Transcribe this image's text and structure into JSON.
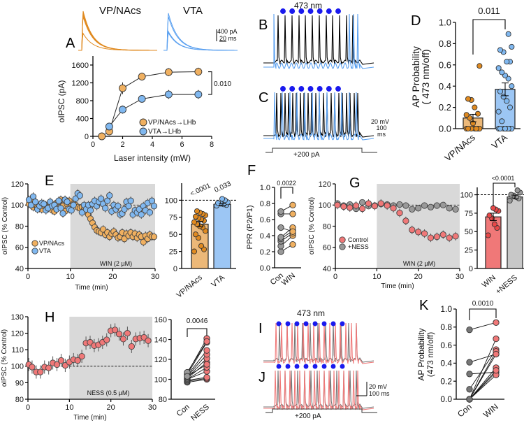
{
  "colors": {
    "vp": "#f0b060",
    "vp_stroke": "#e08a20",
    "vta": "#80b8f0",
    "vta_stroke": "#5aa0f0",
    "control": "#f07878",
    "ness": "#999999",
    "con_gray": "#666666",
    "laser": "#1a1aee",
    "shade": "#d9d9d9"
  },
  "panelA": {
    "letter": "A",
    "trace_title_vp": "VP/NAcs",
    "trace_title_vta": "VTA",
    "scale_y": "400 pA",
    "scale_x": "20 ms",
    "ylabel": "oIPSC (pA)",
    "xlabel": "Laser intensity (mW)",
    "legend_vp": "VP/NAcs→LHb",
    "legend_vta": "VTA→LHb",
    "p_value": "0.010"
  },
  "panelB": {
    "letter": "B",
    "laser_label": "473 nm"
  },
  "panelC": {
    "letter": "C",
    "scale_y": "20 mV",
    "scale_x1": "100",
    "scale_x2": "ms",
    "step_label": "+200 pA"
  },
  "panelD": {
    "letter": "D",
    "ylabel1": "AP Probability",
    "ylabel2": "( 473 nm/off)",
    "p_value": "0.011"
  },
  "panelE": {
    "letter": "E",
    "ylabel": "oIPSC (% Control)",
    "xlabel": "Time (min)",
    "legend_vp": "VP/NAcs",
    "legend_vta": "VTA",
    "drug": "WIN (2 µM)",
    "p_vp": "<.0001",
    "p_vta": "0.033"
  },
  "panelF": {
    "letter": "F",
    "ylabel": "PPR (P2/P1)",
    "p_value": "0.0022"
  },
  "panelG": {
    "letter": "G",
    "ylabel": "oIPSC (% Control)",
    "xlabel": "Time (min)",
    "legend_control": "Control",
    "legend_ness": "+NESS",
    "drug": "WIN (2 µM)",
    "p_value": "<0.0001"
  },
  "panelH": {
    "letter": "H",
    "ylabel": "oIPSC (% Control)",
    "xlabel": "Time (min)",
    "drug": "NESS (0.5 µM)",
    "p_value": "0.0046"
  },
  "panelI": {
    "letter": "I",
    "laser_label": "473 nm"
  },
  "panelJ": {
    "letter": "J",
    "scale_y": "20 mV",
    "scale_x": "100 ms",
    "step_label": "+200 pA"
  },
  "panelK": {
    "letter": "K",
    "ylabel1": "AP Probability",
    "ylabel2": "(473 nm/off)",
    "p_value": "0.0010"
  },
  "chart_data": [
    {
      "panel": "A",
      "type": "line",
      "xlim": [
        0,
        8
      ],
      "ylim": [
        0,
        1600
      ],
      "xticks": [
        0,
        2,
        4,
        6,
        8
      ],
      "yticks": [
        0,
        400,
        800,
        1200,
        1600
      ],
      "series": [
        {
          "name": "VP/NAcs→LHb",
          "x": [
            0.6,
            1.1,
            2.0,
            3.3,
            5.1,
            7.1
          ],
          "y": [
            0,
            110,
            1080,
            1340,
            1440,
            1450
          ],
          "sem": [
            20,
            40,
            130,
            90,
            90,
            90
          ]
        },
        {
          "name": "VTA→LHb",
          "x": [
            1.1,
            2.0,
            3.3,
            5.1,
            7.1
          ],
          "y": [
            220,
            600,
            840,
            940,
            940
          ],
          "sem": [
            40,
            90,
            80,
            100,
            100
          ]
        }
      ]
    },
    {
      "panel": "D",
      "type": "bar",
      "categories": [
        "VP/NAcs",
        "VTA"
      ],
      "ylim": [
        0,
        1.0
      ],
      "yticks": [
        0.0,
        0.2,
        0.4,
        0.6,
        0.8,
        1.0
      ],
      "values": [
        0.1,
        0.37
      ],
      "sem": [
        0.035,
        0.06
      ],
      "points": [
        [
          0,
          0,
          0,
          0,
          0,
          0,
          0,
          0.05,
          0.1,
          0.13,
          0.14,
          0.2,
          0.27,
          0.28,
          0.59
        ],
        [
          0,
          0,
          0,
          0,
          0,
          0,
          0,
          0,
          0.07,
          0.16,
          0.2,
          0.26,
          0.3,
          0.35,
          0.4,
          0.47,
          0.5,
          0.53,
          0.57,
          0.63,
          0.63,
          0.72,
          0.74,
          0.77,
          0.89
        ]
      ]
    },
    {
      "panel": "E",
      "type": "scatter",
      "xlim": [
        0,
        30
      ],
      "ylim": [
        40,
        120
      ],
      "xticks": [
        0,
        10,
        20,
        30
      ],
      "yticks": [
        40,
        60,
        80,
        100,
        120
      ],
      "shaded": [
        10,
        30
      ],
      "reference": 100,
      "x_step": 0.5,
      "series": [
        {
          "name": "VP/NAcs",
          "sem": 4,
          "y": [
            101,
            103,
            98,
            100,
            98,
            97,
            96,
            99,
            100,
            98,
            101,
            95,
            94,
            102,
            103,
            105,
            99,
            94,
            101,
            104,
            99,
            101,
            100,
            98,
            97,
            98,
            96,
            94,
            91,
            87,
            83,
            79,
            76,
            75,
            74,
            77,
            72,
            74,
            70,
            73,
            75,
            72,
            69,
            70,
            74,
            68,
            73,
            71,
            74,
            70,
            73,
            69,
            72,
            70,
            65,
            71,
            68,
            72,
            70,
            70
          ]
        },
        {
          "name": "VTA",
          "sem": 4,
          "y": [
            105,
            100,
            108,
            103,
            96,
            99,
            102,
            101,
            95,
            97,
            103,
            99,
            100,
            96,
            104,
            97,
            92,
            105,
            103,
            96,
            95,
            100,
            106,
            111,
            109,
            93,
            100,
            96,
            100,
            95,
            101,
            104,
            99,
            103,
            106,
            101,
            97,
            104,
            109,
            94,
            100,
            96,
            99,
            91,
            92,
            96,
            103,
            99,
            104,
            91,
            95,
            93,
            96,
            91,
            99,
            95,
            102,
            93,
            104,
            99
          ]
        }
      ]
    },
    {
      "panel": "E-inset",
      "type": "bar",
      "categories": [
        "VP/NAcs",
        "VTA"
      ],
      "ylim": [
        0,
        125
      ],
      "yticks": [
        0,
        25,
        50,
        75,
        100
      ],
      "reference": 100,
      "values": [
        65,
        94
      ],
      "sem": [
        4,
        1.5
      ],
      "points": [
        [
          25,
          28,
          33,
          45,
          50,
          55,
          60,
          62,
          65,
          68,
          70,
          72,
          74,
          76,
          78,
          80,
          82,
          84
        ],
        [
          92,
          93,
          94,
          95,
          96,
          97,
          100,
          102
        ]
      ]
    },
    {
      "panel": "F",
      "type": "paired",
      "categories": [
        "Con",
        "WIN"
      ],
      "ylim": [
        0,
        1.0
      ],
      "yticks": [
        0.0,
        0.2,
        0.4,
        0.6,
        0.8,
        1.0
      ],
      "pairs": [
        [
          0.2,
          0.29
        ],
        [
          0.27,
          0.4
        ],
        [
          0.33,
          0.43
        ],
        [
          0.36,
          0.46
        ],
        [
          0.38,
          0.5
        ],
        [
          0.5,
          0.45
        ],
        [
          0.67,
          0.67
        ],
        [
          0.7,
          0.78
        ]
      ]
    },
    {
      "panel": "G",
      "type": "scatter",
      "xlim": [
        0,
        30
      ],
      "ylim": [
        40,
        120
      ],
      "xticks": [
        0,
        10,
        20,
        30
      ],
      "yticks": [
        40,
        60,
        80,
        100,
        120
      ],
      "shaded": [
        10,
        30
      ],
      "reference": 100,
      "x": [
        0.5,
        2,
        3.5,
        5,
        6.5,
        8,
        9.5,
        11,
        12.5,
        14,
        15.5,
        17,
        18.5,
        20,
        21.5,
        23,
        24.5,
        26,
        27.5,
        29
      ],
      "series": [
        {
          "name": "+NESS",
          "sem": 2,
          "y": [
            101.5,
            99.5,
            100.5,
            96.5,
            102.5,
            99,
            99.5,
            101,
            100.5,
            99.5,
            100.5,
            99.5,
            96,
            97,
            99.5,
            98,
            99.5,
            100,
            97,
            96
          ]
        },
        {
          "name": "Control",
          "sem": 4,
          "y": [
            100,
            98.5,
            97.5,
            99.5,
            96.5,
            101.5,
            99,
            101.5,
            99.5,
            97,
            92.5,
            85,
            76.5,
            74.5,
            73,
            69,
            70,
            72,
            69,
            70.5
          ]
        }
      ]
    },
    {
      "panel": "G-inset",
      "type": "bar",
      "categories": [
        "WIN",
        "+NESS"
      ],
      "ylim": [
        0,
        110
      ],
      "yticks": [
        0,
        25,
        50,
        75,
        100
      ],
      "reference": 100,
      "values": [
        70,
        97
      ],
      "sem": [
        5,
        2.5
      ],
      "points": [
        [
          45,
          55,
          60,
          68,
          72,
          78,
          80,
          82
        ],
        [
          92,
          95,
          97,
          99,
          100,
          103,
          106
        ]
      ]
    },
    {
      "panel": "H",
      "type": "scatter",
      "xlim": [
        0,
        30
      ],
      "ylim": [
        80,
        130
      ],
      "xticks": [
        0,
        10,
        20,
        30
      ],
      "yticks": [
        80,
        90,
        100,
        110,
        120,
        130
      ],
      "shaded": [
        10,
        30
      ],
      "reference": 100,
      "x": [
        0.2,
        1,
        2,
        3,
        4,
        5,
        6,
        7,
        8,
        9,
        10,
        11,
        12,
        13,
        14,
        15,
        16,
        17,
        18,
        19,
        20,
        21,
        22,
        23,
        24,
        25,
        26,
        27,
        28,
        29
      ],
      "series": [
        {
          "name": "NESS",
          "sem": 4,
          "y": [
            101,
            99.5,
            96.5,
            96.5,
            99.5,
            99,
            102,
            101,
            103.5,
            100.5,
            102.5,
            104,
            103.5,
            106,
            114,
            114.5,
            112.5,
            113,
            114.5,
            116,
            121.5,
            122,
            119.5,
            116.5,
            120,
            112,
            116.5,
            117,
            117.5,
            115.5
          ]
        }
      ]
    },
    {
      "panel": "H-inset",
      "type": "paired",
      "categories": [
        "Con",
        "NESS"
      ],
      "ylim": [
        80,
        160
      ],
      "yticks": [
        80,
        100,
        120,
        140,
        160
      ],
      "pairs": [
        [
          97,
          100
        ],
        [
          98,
          101
        ],
        [
          99,
          102
        ],
        [
          100,
          108
        ],
        [
          100,
          112
        ],
        [
          101,
          117
        ],
        [
          102,
          121
        ],
        [
          103,
          125
        ],
        [
          104,
          129
        ],
        [
          105,
          137
        ],
        [
          106,
          141
        ],
        [
          107,
          138
        ],
        [
          103,
          115
        ]
      ]
    },
    {
      "panel": "K",
      "type": "paired",
      "categories": [
        "Con",
        "WIN"
      ],
      "ylim": [
        0,
        1.0
      ],
      "yticks": [
        0.0,
        0.2,
        0.4,
        0.6,
        0.8,
        1.0
      ],
      "pairs": [
        [
          0.77,
          0.85
        ],
        [
          0.41,
          0.5
        ],
        [
          0.28,
          0.3
        ],
        [
          0.11,
          0.55
        ],
        [
          0,
          0.67
        ],
        [
          0,
          0.53
        ],
        [
          0,
          0.35
        ],
        [
          0,
          0.3
        ],
        [
          0,
          0.27
        ],
        [
          0,
          0.32
        ],
        [
          0,
          0.5
        ]
      ]
    }
  ]
}
